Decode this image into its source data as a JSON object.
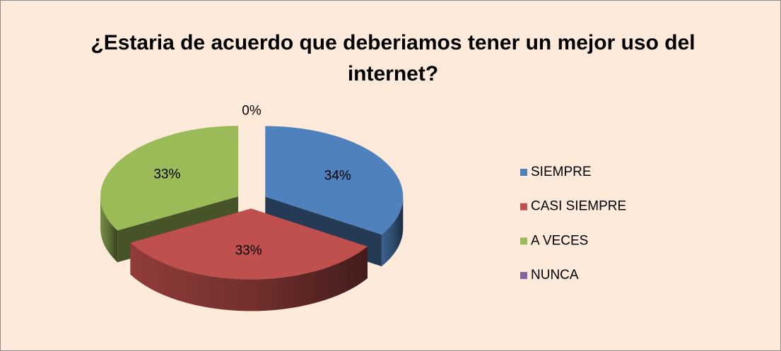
{
  "chart_data": {
    "type": "pie",
    "title": "¿Estaria de acuerdo que deberiamos tener un mejor uso del internet?",
    "categories": [
      "SIEMPRE",
      "CASI SIEMPRE",
      "A VECES",
      "NUNCA"
    ],
    "values": [
      34,
      33,
      33,
      0
    ],
    "value_labels": [
      "34%",
      "33%",
      "33%",
      "0%"
    ],
    "colors": [
      "#4f81bd",
      "#c0504d",
      "#9bbb59",
      "#8064a2"
    ],
    "legend": "right"
  }
}
